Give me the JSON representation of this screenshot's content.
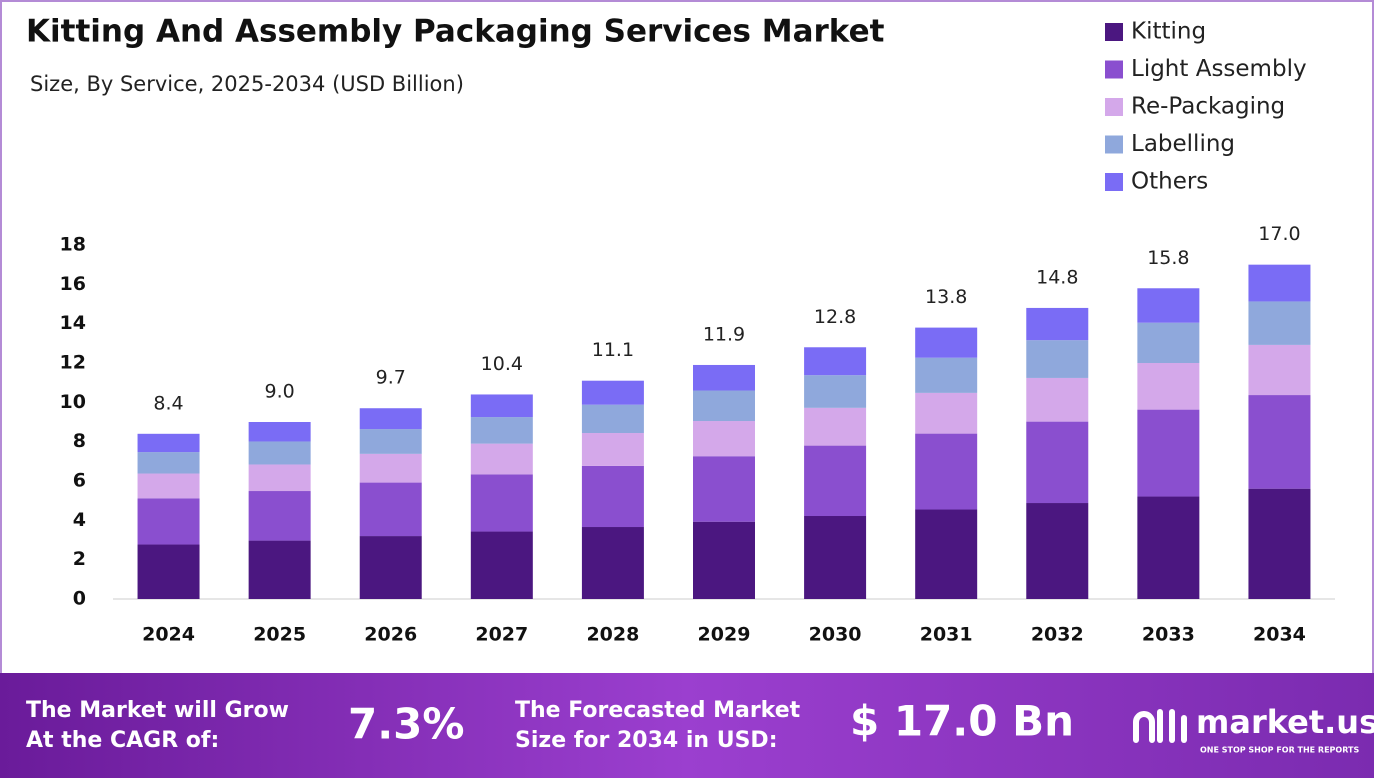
{
  "chart_data": {
    "type": "stacked-bar",
    "title": "Kitting And Assembly Packaging Services Market",
    "subtitle": "Size, By Service, 2025-2034 (USD Billion)",
    "categories": [
      "2024",
      "2025",
      "2026",
      "2027",
      "2028",
      "2029",
      "2030",
      "2031",
      "2032",
      "2033",
      "2034"
    ],
    "series": [
      {
        "name": "Kitting",
        "color": "#4b1780",
        "values": [
          2.77,
          2.97,
          3.2,
          3.43,
          3.66,
          3.93,
          4.22,
          4.55,
          4.88,
          5.21,
          5.61
        ]
      },
      {
        "name": "Light Assembly",
        "color": "#8a4fcf",
        "values": [
          2.35,
          2.52,
          2.72,
          2.91,
          3.11,
          3.33,
          3.58,
          3.86,
          4.14,
          4.42,
          4.76
        ]
      },
      {
        "name": "Re-Packaging",
        "color": "#d4a8ea",
        "values": [
          1.26,
          1.35,
          1.46,
          1.56,
          1.67,
          1.79,
          1.92,
          2.07,
          2.22,
          2.37,
          2.55
        ]
      },
      {
        "name": "Labelling",
        "color": "#8fa8dc",
        "values": [
          1.09,
          1.17,
          1.26,
          1.35,
          1.44,
          1.55,
          1.66,
          1.79,
          1.92,
          2.05,
          2.21
        ]
      },
      {
        "name": "Others",
        "color": "#7a6cf5",
        "values": [
          0.93,
          0.99,
          1.06,
          1.15,
          1.22,
          1.3,
          1.42,
          1.53,
          1.64,
          1.75,
          1.87
        ]
      }
    ],
    "totals": [
      8.4,
      9.0,
      9.7,
      10.4,
      11.1,
      11.9,
      12.8,
      13.8,
      14.8,
      15.8,
      17.0
    ],
    "total_labels": [
      "8.4",
      "9.0",
      "9.7",
      "10.4",
      "11.1",
      "11.9",
      "12.8",
      "13.8",
      "14.8",
      "15.8",
      "17.0"
    ],
    "ylim": [
      0,
      18
    ],
    "yticks": [
      0,
      2,
      4,
      6,
      8,
      10,
      12,
      14,
      16,
      18
    ],
    "grid": false,
    "legend": "top-right"
  },
  "footer": {
    "cagr_text": [
      "The Market will Grow",
      "At the CAGR of:"
    ],
    "cagr_value": "7.3%",
    "forecast_text": [
      "The Forecasted Market",
      "Size for 2034 in USD:"
    ],
    "forecast_value": "$ 17.0 Bn",
    "brand": "market.us",
    "tagline": "ONE STOP SHOP FOR THE REPORTS"
  }
}
